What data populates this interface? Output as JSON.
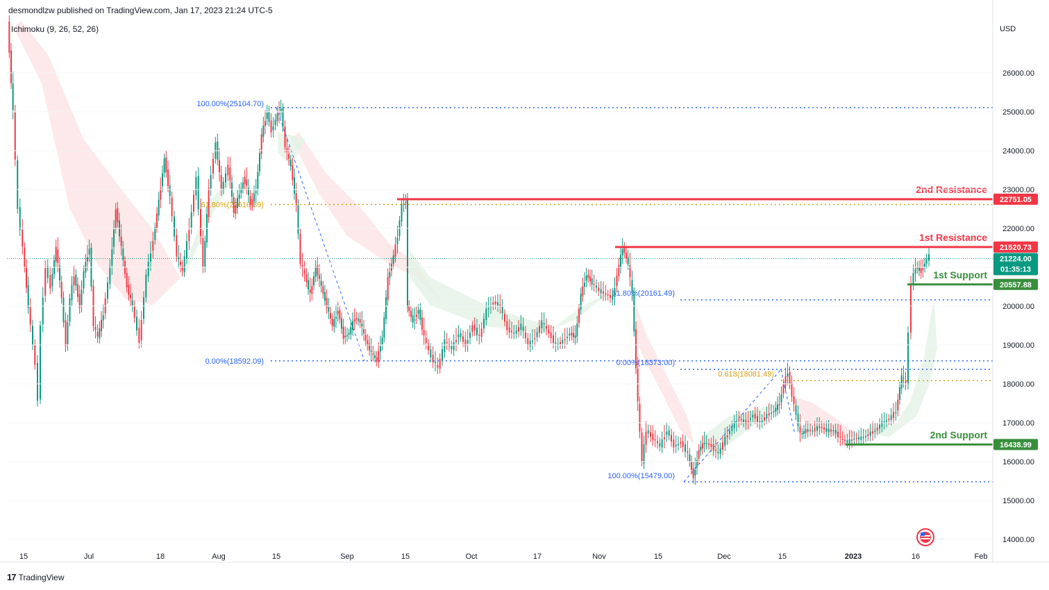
{
  "header": {
    "text": "desmondlzw published on TradingView.com, Jan 17, 2023 21:24 UTC-5"
  },
  "indicator": {
    "text": "Ichimoku (9, 26, 52, 26)"
  },
  "footer": {
    "logo": "17",
    "text": "TradingView"
  },
  "chart_data": {
    "type": "line",
    "currency": "USD",
    "y_ticks": [
      "14000.00",
      "15000.00",
      "16000.00",
      "17000.00",
      "18000.00",
      "19000.00",
      "20000.00",
      "21000.00",
      "22000.00",
      "23000.00",
      "24000.00",
      "25000.00",
      "26000.00"
    ],
    "x_ticks": [
      "15",
      "Jul",
      "18",
      "Aug",
      "15",
      "Sep",
      "15",
      "Oct",
      "17",
      "Nov",
      "15",
      "Dec",
      "15",
      "2023",
      "16",
      "Feb"
    ],
    "ylim": [
      13600,
      27500
    ],
    "price_path": [
      [
        0,
        27300
      ],
      [
        8,
        25000
      ],
      [
        15,
        22500
      ],
      [
        22,
        21500
      ],
      [
        30,
        20000
      ],
      [
        40,
        18500
      ],
      [
        44,
        17600
      ],
      [
        48,
        19500
      ],
      [
        55,
        21000
      ],
      [
        62,
        20500
      ],
      [
        70,
        21500
      ],
      [
        78,
        20200
      ],
      [
        84,
        19000
      ],
      [
        90,
        20200
      ],
      [
        96,
        20800
      ],
      [
        104,
        20000
      ],
      [
        110,
        20900
      ],
      [
        118,
        21500
      ],
      [
        124,
        19500
      ],
      [
        130,
        19200
      ],
      [
        138,
        19800
      ],
      [
        148,
        21000
      ],
      [
        156,
        22500
      ],
      [
        164,
        21500
      ],
      [
        172,
        20500
      ],
      [
        180,
        20000
      ],
      [
        190,
        19100
      ],
      [
        200,
        20800
      ],
      [
        210,
        21700
      ],
      [
        218,
        22700
      ],
      [
        226,
        23800
      ],
      [
        234,
        22800
      ],
      [
        244,
        21300
      ],
      [
        252,
        20900
      ],
      [
        262,
        22000
      ],
      [
        272,
        23300
      ],
      [
        282,
        21000
      ],
      [
        290,
        23000
      ],
      [
        300,
        24200
      ],
      [
        308,
        23000
      ],
      [
        318,
        23600
      ],
      [
        326,
        22400
      ],
      [
        334,
        22900
      ],
      [
        342,
        23300
      ],
      [
        350,
        22600
      ],
      [
        358,
        23000
      ],
      [
        366,
        24400
      ],
      [
        374,
        25000
      ],
      [
        380,
        24500
      ],
      [
        386,
        24800
      ],
      [
        394,
        25100
      ],
      [
        400,
        24100
      ],
      [
        408,
        23600
      ],
      [
        416,
        22600
      ],
      [
        422,
        21100
      ],
      [
        428,
        20800
      ],
      [
        436,
        20300
      ],
      [
        444,
        21000
      ],
      [
        452,
        20500
      ],
      [
        460,
        20000
      ],
      [
        468,
        19500
      ],
      [
        476,
        19900
      ],
      [
        484,
        19200
      ],
      [
        492,
        19300
      ],
      [
        500,
        19700
      ],
      [
        508,
        19600
      ],
      [
        516,
        19100
      ],
      [
        524,
        18800
      ],
      [
        532,
        18600
      ],
      [
        540,
        19200
      ],
      [
        548,
        20700
      ],
      [
        556,
        21300
      ],
      [
        562,
        21800
      ],
      [
        568,
        22600
      ],
      [
        574,
        22700
      ],
      [
        576,
        20000
      ],
      [
        584,
        19600
      ],
      [
        592,
        19900
      ],
      [
        600,
        19200
      ],
      [
        610,
        18700
      ],
      [
        620,
        18400
      ],
      [
        630,
        19100
      ],
      [
        640,
        18900
      ],
      [
        650,
        19300
      ],
      [
        660,
        19000
      ],
      [
        670,
        19500
      ],
      [
        680,
        19200
      ],
      [
        690,
        19900
      ],
      [
        700,
        20100
      ],
      [
        710,
        20000
      ],
      [
        720,
        19400
      ],
      [
        730,
        19300
      ],
      [
        740,
        19500
      ],
      [
        750,
        19000
      ],
      [
        760,
        19200
      ],
      [
        770,
        19600
      ],
      [
        780,
        19300
      ],
      [
        790,
        19000
      ],
      [
        800,
        19100
      ],
      [
        810,
        19300
      ],
      [
        818,
        19200
      ],
      [
        826,
        20300
      ],
      [
        834,
        20800
      ],
      [
        842,
        20600
      ],
      [
        852,
        20400
      ],
      [
        862,
        20300
      ],
      [
        872,
        20200
      ],
      [
        878,
        20800
      ],
      [
        886,
        21500
      ],
      [
        894,
        21100
      ],
      [
        900,
        20300
      ],
      [
        908,
        17500
      ],
      [
        914,
        16000
      ],
      [
        920,
        16800
      ],
      [
        930,
        16600
      ],
      [
        940,
        16400
      ],
      [
        950,
        16800
      ],
      [
        960,
        16400
      ],
      [
        970,
        16500
      ],
      [
        980,
        16200
      ],
      [
        988,
        15600
      ],
      [
        996,
        16300
      ],
      [
        1004,
        16500
      ],
      [
        1014,
        16400
      ],
      [
        1024,
        16200
      ],
      [
        1034,
        16600
      ],
      [
        1044,
        16900
      ],
      [
        1054,
        17100
      ],
      [
        1064,
        17000
      ],
      [
        1074,
        17200
      ],
      [
        1084,
        17000
      ],
      [
        1094,
        17200
      ],
      [
        1104,
        17300
      ],
      [
        1112,
        17500
      ],
      [
        1118,
        18000
      ],
      [
        1124,
        18300
      ],
      [
        1130,
        17700
      ],
      [
        1136,
        17200
      ],
      [
        1142,
        16700
      ],
      [
        1150,
        16800
      ],
      [
        1160,
        16800
      ],
      [
        1170,
        16900
      ],
      [
        1180,
        16800
      ],
      [
        1190,
        16800
      ],
      [
        1200,
        16600
      ],
      [
        1210,
        16500
      ],
      [
        1220,
        16600
      ],
      [
        1230,
        16600
      ],
      [
        1240,
        16700
      ],
      [
        1250,
        16800
      ],
      [
        1260,
        17000
      ],
      [
        1270,
        17100
      ],
      [
        1280,
        17300
      ],
      [
        1288,
        18200
      ],
      [
        1294,
        18000
      ],
      [
        1298,
        19300
      ],
      [
        1302,
        20600
      ],
      [
        1308,
        21000
      ],
      [
        1316,
        20900
      ],
      [
        1324,
        21200
      ],
      [
        1328,
        21300
      ]
    ],
    "horizontal_levels": [
      {
        "name": "2nd Resistance",
        "value": 22751.05,
        "value_label": "22751.05",
        "color": "#f23645"
      },
      {
        "name": "1st Resistance",
        "value": 21520.73,
        "value_label": "21520.73",
        "color": "#f23645"
      },
      {
        "name": "1st Support",
        "value": 20557.88,
        "value_label": "20557.88",
        "color": "#388e3c"
      },
      {
        "name": "2nd Support",
        "value": 16438.99,
        "value_label": "16438.99",
        "color": "#388e3c"
      }
    ],
    "last_price": {
      "value": 21224.0,
      "label": "21224.00",
      "countdown": "01:35:13",
      "color": "#089981"
    },
    "fib_levels": [
      {
        "label": "100.00%(25104.70)",
        "value": 25104.7,
        "color": "#2962ff"
      },
      {
        "label": "61.80%(22616.89)",
        "value": 22616.89,
        "color": "#d4a10f"
      },
      {
        "label": "0.00%(18592.09)",
        "value": 18592.09,
        "color": "#2962ff"
      },
      {
        "label": "61.80%(20161.49)",
        "value": 20161.49,
        "color": "#2962ff"
      },
      {
        "label": "0.00%(18373.00)",
        "value": 18373.0,
        "color": "#2962ff"
      },
      {
        "label": "0.618(18081.49)",
        "value": 18081.49,
        "color": "#d4a10f"
      },
      {
        "label": "100.00%(15479.00)",
        "value": 15479.0,
        "color": "#2962ff"
      }
    ],
    "colors": {
      "up": "#089981",
      "down": "#f23645",
      "grid": "#f0f3fa",
      "text": "#131722"
    }
  }
}
